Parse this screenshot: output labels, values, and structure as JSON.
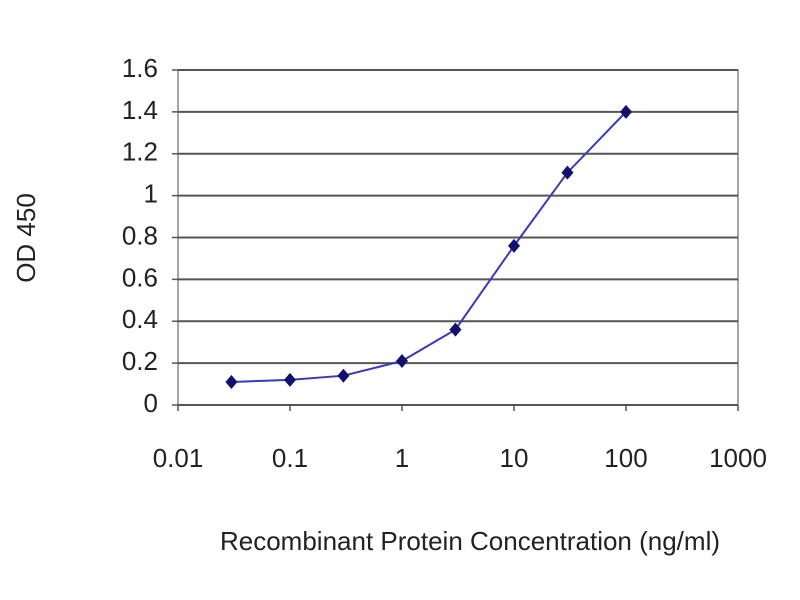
{
  "chart_data": {
    "type": "line",
    "x_label": "Recombinant Protein Concentration (ng/ml)",
    "y_label": "OD 450",
    "x": [
      0.03,
      0.1,
      0.3,
      1,
      3,
      10,
      30,
      100
    ],
    "values": [
      0.11,
      0.12,
      0.14,
      0.21,
      0.36,
      0.76,
      1.11,
      1.4
    ],
    "color": "#3a3ab8",
    "marker_color": "#10106e",
    "x_log": true,
    "xlim": [
      0.01,
      1000
    ],
    "xticks": [
      0.01,
      0.1,
      1,
      10,
      100,
      1000
    ],
    "ylim": [
      0,
      1.6
    ],
    "yticks": [
      0,
      0.2,
      0.4,
      0.6,
      0.8,
      1,
      1.2,
      1.4,
      1.6
    ],
    "grid": true
  }
}
